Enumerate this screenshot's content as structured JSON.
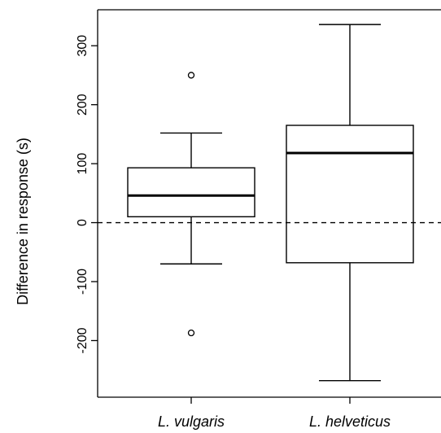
{
  "chart_data": {
    "type": "boxplot",
    "title": "",
    "xlabel": "",
    "ylabel": "Difference in  response (s)",
    "ylim": [
      -296,
      361
    ],
    "yticks": [
      -200,
      -100,
      0,
      100,
      200,
      300
    ],
    "ytick_labels": [
      "-200",
      "-100",
      "0",
      "100",
      "200",
      "300"
    ],
    "reference_line": {
      "y": 0,
      "style": "dashed"
    },
    "categories": [
      "L. vulgaris",
      "L. helveticus"
    ],
    "boxes": [
      {
        "category": "L. vulgaris",
        "whisker_low": -70,
        "q1": 10,
        "median": 46,
        "q3": 93,
        "whisker_high": 152,
        "outliers": [
          250,
          -187
        ]
      },
      {
        "category": "L. helveticus",
        "whisker_low": -268,
        "q1": -68,
        "median": 118,
        "q3": 165,
        "whisker_high": 336,
        "outliers": []
      }
    ]
  }
}
